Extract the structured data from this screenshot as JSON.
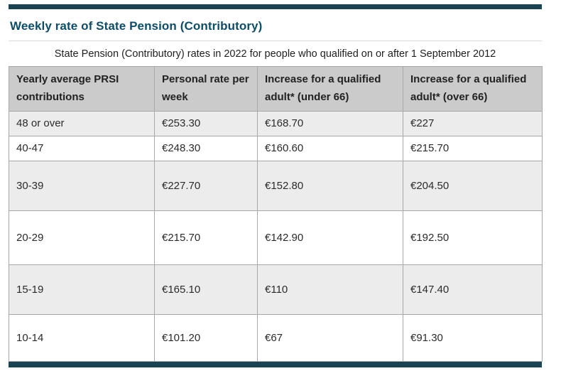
{
  "page": {
    "title": "Weekly rate of State Pension (Contributory)",
    "caption": "State Pension (Contributory) rates in 2022 for people who qualified on or after 1 September 2012"
  },
  "table": {
    "headers": [
      "Yearly average PRSI contributions",
      "Personal rate per week",
      "Increase for a qualified adult* (under 66)",
      "Increase for a qualified adult* (over 66)"
    ],
    "rows": [
      [
        "48 or over",
        "€253.30",
        "€168.70",
        "€227"
      ],
      [
        "40-47",
        "€248.30",
        "€160.60",
        "€215.70"
      ],
      [
        "30-39",
        "€227.70",
        "€152.80",
        "€204.50"
      ],
      [
        "20-29",
        "€215.70",
        "€142.90",
        "€192.50"
      ],
      [
        "15-19",
        "€165.10",
        "€110",
        "€147.40"
      ],
      [
        "10-14",
        "€101.20",
        "€67",
        "€91.30"
      ]
    ]
  },
  "colors": {
    "accent_bar": "#1b4452",
    "title": "#0b4e6b",
    "header_bg": "#cbcbcb",
    "row_alt_bg": "#ececec",
    "border": "#a8a8a8"
  }
}
